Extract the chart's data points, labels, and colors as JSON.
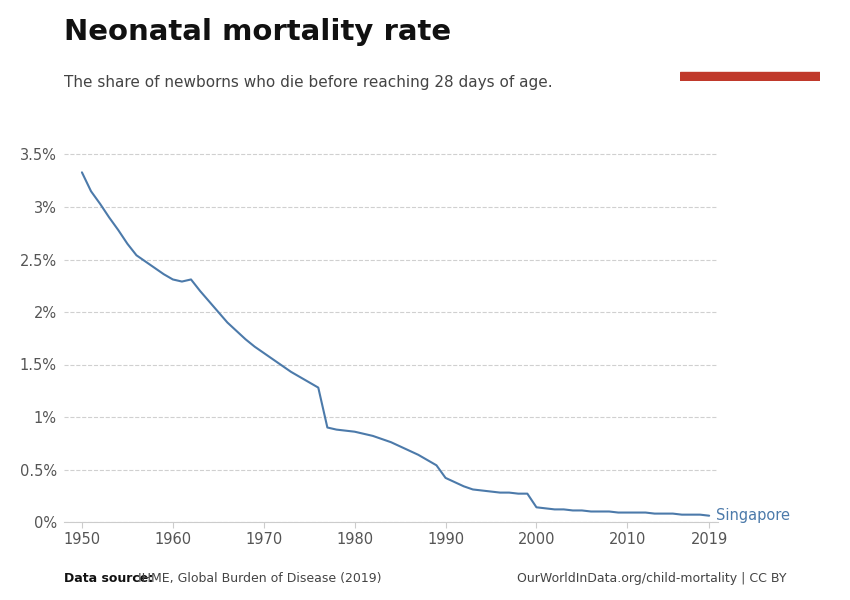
{
  "title": "Neonatal mortality rate",
  "subtitle": "The share of newborns who die before reaching 28 days of age.",
  "line_color": "#4c7aaa",
  "background_color": "#ffffff",
  "label": "Singapore",
  "data_source_bold": "Data source:",
  "data_source_rest": " IHME, Global Burden of Disease (2019)",
  "url": "OurWorldInData.org/child-mortality | CC BY",
  "years": [
    1950,
    1951,
    1952,
    1953,
    1954,
    1955,
    1956,
    1957,
    1958,
    1959,
    1960,
    1961,
    1962,
    1963,
    1964,
    1965,
    1966,
    1967,
    1968,
    1969,
    1970,
    1971,
    1972,
    1973,
    1974,
    1975,
    1976,
    1977,
    1978,
    1979,
    1980,
    1981,
    1982,
    1983,
    1984,
    1985,
    1986,
    1987,
    1988,
    1989,
    1990,
    1991,
    1992,
    1993,
    1994,
    1995,
    1996,
    1997,
    1998,
    1999,
    2000,
    2001,
    2002,
    2003,
    2004,
    2005,
    2006,
    2007,
    2008,
    2009,
    2010,
    2011,
    2012,
    2013,
    2014,
    2015,
    2016,
    2017,
    2018,
    2019
  ],
  "values": [
    0.0333,
    0.0315,
    0.0303,
    0.029,
    0.0278,
    0.0265,
    0.0254,
    0.0248,
    0.0242,
    0.0236,
    0.0231,
    0.0229,
    0.0231,
    0.022,
    0.021,
    0.02,
    0.019,
    0.0182,
    0.0174,
    0.0167,
    0.0161,
    0.0155,
    0.0149,
    0.0143,
    0.0138,
    0.0133,
    0.0128,
    0.009,
    0.0088,
    0.0087,
    0.0086,
    0.0084,
    0.0082,
    0.0079,
    0.0076,
    0.0072,
    0.0068,
    0.0064,
    0.0059,
    0.0054,
    0.0042,
    0.0038,
    0.0034,
    0.0031,
    0.003,
    0.0029,
    0.0028,
    0.0028,
    0.0027,
    0.0027,
    0.0014,
    0.0013,
    0.0012,
    0.0012,
    0.0011,
    0.0011,
    0.001,
    0.001,
    0.001,
    0.0009,
    0.0009,
    0.0009,
    0.0009,
    0.0008,
    0.0008,
    0.0008,
    0.0007,
    0.0007,
    0.0007,
    0.0006
  ],
  "xlim": [
    1948,
    2020
  ],
  "ylim": [
    0,
    0.036
  ],
  "yticks": [
    0,
    0.005,
    0.01,
    0.015,
    0.02,
    0.025,
    0.03,
    0.035
  ],
  "ytick_labels": [
    "0%",
    "0.5%",
    "1%",
    "1.5%",
    "2%",
    "2.5%",
    "3%",
    "3.5%"
  ],
  "xticks": [
    1950,
    1960,
    1970,
    1980,
    1990,
    2000,
    2010,
    2019
  ],
  "owid_box_color": "#143e6b",
  "owid_bar_color": "#c0392b",
  "grid_color": "#d0d0d0",
  "tick_color": "#555555",
  "label_color": "#4c7aaa"
}
